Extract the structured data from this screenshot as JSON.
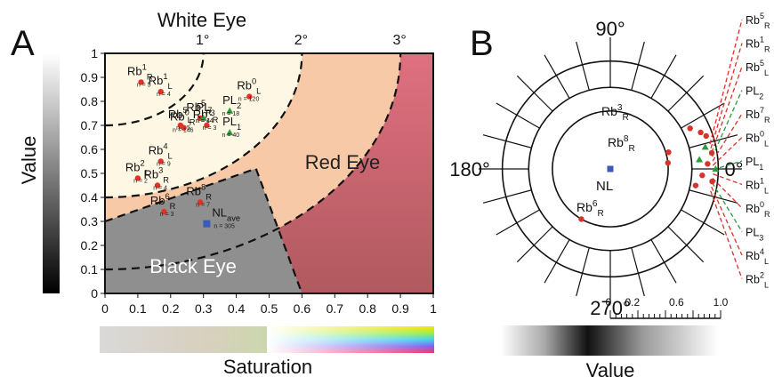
{
  "chart_data": [
    {
      "panel": "A",
      "type": "scatter",
      "title": "White Eye",
      "xlabel": "Saturation",
      "ylabel": "Value",
      "xlim": [
        0,
        1
      ],
      "ylim": [
        0,
        1
      ],
      "xticks": [
        "0",
        "0.1",
        "0.2",
        "0.3",
        "0.4",
        "0.5",
        "0.6",
        "0.7",
        "0.8",
        "0.9",
        "1"
      ],
      "yticks": [
        "0",
        "0.1",
        "0.2",
        "0.3",
        "0.4",
        "0.5",
        "0.6",
        "0.7",
        "0.8",
        "0.9",
        "1"
      ],
      "arc_labels": [
        "1°",
        "2°",
        "3°"
      ],
      "arc_radii": [
        0.3,
        0.6,
        0.9
      ],
      "regions": [
        "Red Eye",
        "Black Eye"
      ],
      "region_colors": {
        "white": "#fdf7e3",
        "orange": "#f8c9a6",
        "red": "#db6c7e",
        "black": "#8f8f8f"
      },
      "black_eye_boundary": [
        [
          0,
          0.3
        ],
        [
          0.46,
          0.52
        ],
        [
          0.6,
          0
        ]
      ],
      "points": [
        {
          "label": "Rb",
          "sup": "1",
          "sub": "R",
          "n": "n = 5",
          "x": 0.11,
          "y": 0.88,
          "marker": "circle"
        },
        {
          "label": "Rb",
          "sup": "1",
          "sub": "L",
          "n": "n = 4",
          "x": 0.17,
          "y": 0.84,
          "marker": "circle"
        },
        {
          "label": "PL",
          "sup": "",
          "sub": "2",
          "n": "n = 18",
          "x": 0.38,
          "y": 0.76,
          "marker": "triangle"
        },
        {
          "label": "Rb",
          "sup": "5",
          "sub": "R",
          "n": "n = 4",
          "x": 0.29,
          "y": 0.73,
          "marker": "circle"
        },
        {
          "label": "Rb",
          "sup": "5",
          "sub": "L",
          "n": "n = 5",
          "x": 0.23,
          "y": 0.7,
          "marker": "circle"
        },
        {
          "label": "Rb",
          "sup": "7",
          "sub": "R",
          "n": "n = 3",
          "x": 0.31,
          "y": 0.7,
          "marker": "circle"
        },
        {
          "label": "Rb",
          "sup": "0",
          "sub": "L",
          "n": "n = 120",
          "x": 0.44,
          "y": 0.82,
          "marker": "circle"
        },
        {
          "label": "Rb",
          "sup": "0",
          "sub": "R",
          "n": "n = 146",
          "x": 0.24,
          "y": 0.69,
          "marker": "circle"
        },
        {
          "label": "PL",
          "sup": "",
          "sub": "3",
          "n": "n = 14",
          "x": 0.3,
          "y": 0.73,
          "marker": "triangle"
        },
        {
          "label": "PL",
          "sup": "",
          "sub": "1",
          "n": "n = 40",
          "x": 0.38,
          "y": 0.67,
          "marker": "triangle"
        },
        {
          "label": "Rb",
          "sup": "2",
          "sub": "L",
          "n": "n = 2",
          "x": 0.1,
          "y": 0.48,
          "marker": "circle"
        },
        {
          "label": "Rb",
          "sup": "4",
          "sub": "L",
          "n": "n = 9",
          "x": 0.17,
          "y": 0.55,
          "marker": "circle"
        },
        {
          "label": "Rb",
          "sup": "3",
          "sub": "R",
          "n": "n = 4",
          "x": 0.16,
          "y": 0.45,
          "marker": "circle"
        },
        {
          "label": "Rb",
          "sup": "8",
          "sub": "R",
          "n": "n = 7",
          "x": 0.29,
          "y": 0.38,
          "marker": "circle"
        },
        {
          "label": "Rb",
          "sup": "6",
          "sub": "R",
          "n": "n = 3",
          "x": 0.18,
          "y": 0.34,
          "marker": "circle"
        },
        {
          "label": "NL",
          "sup": "",
          "sub": "ave",
          "n": "n = 305",
          "x": 0.31,
          "y": 0.29,
          "marker": "square"
        }
      ],
      "colors": {
        "circle": "#e63025",
        "triangle": "#2a9a3a",
        "square": "#3a5bb8"
      }
    },
    {
      "panel": "B",
      "type": "scatter",
      "subtype": "polar hue-value plot",
      "xlabel": "Value",
      "angle_labels": [
        "90°",
        "180°",
        "0°",
        "270°"
      ],
      "radial_scale": {
        "ticks": [
          "0",
          "0.2",
          "0.6",
          "1.0"
        ],
        "range": [
          0,
          1
        ]
      },
      "rings": [
        0.44,
        0.62,
        0.82
      ],
      "center_label": "NL",
      "inner_labels": [
        {
          "label": "Rb",
          "sup": "3",
          "sub": "R"
        },
        {
          "label": "Rb",
          "sup": "8",
          "sub": "R"
        },
        {
          "label": "Rb",
          "sup": "6",
          "sub": "R"
        }
      ],
      "legend": [
        {
          "label": "Rb",
          "sup": "5",
          "sub": "R",
          "line": "red"
        },
        {
          "label": "Rb",
          "sup": "1",
          "sub": "R",
          "line": "red"
        },
        {
          "label": "Rb",
          "sup": "5",
          "sub": "L",
          "line": "red"
        },
        {
          "label": "PL",
          "sup": "",
          "sub": "2",
          "line": "green"
        },
        {
          "label": "Rb",
          "sup": "7",
          "sub": "R",
          "line": "red"
        },
        {
          "label": "Rb",
          "sup": "0",
          "sub": "L",
          "line": "red"
        },
        {
          "label": "PL",
          "sup": "",
          "sub": "1",
          "line": "green"
        },
        {
          "label": "Rb",
          "sup": "1",
          "sub": "L",
          "line": "red"
        },
        {
          "label": "Rb",
          "sup": "0",
          "sub": "R",
          "line": "red"
        },
        {
          "label": "PL",
          "sup": "",
          "sub": "3",
          "line": "green"
        },
        {
          "label": "Rb",
          "sup": "4",
          "sub": "L",
          "line": "red"
        },
        {
          "label": "Rb",
          "sup": "2",
          "sub": "L",
          "line": "red"
        }
      ],
      "points": [
        {
          "angle": 27,
          "r": 0.68,
          "marker": "circle"
        },
        {
          "angle": 22,
          "r": 0.74,
          "marker": "circle"
        },
        {
          "angle": 19,
          "r": 0.77,
          "marker": "circle"
        },
        {
          "angle": 13,
          "r": 0.74,
          "marker": "triangle"
        },
        {
          "angle": 9,
          "r": 0.78,
          "marker": "circle"
        },
        {
          "angle": 6,
          "r": 0.68,
          "marker": "triangle"
        },
        {
          "angle": 3,
          "r": 0.74,
          "marker": "circle"
        },
        {
          "angle": 0,
          "r": 0.8,
          "marker": "triangle"
        },
        {
          "angle": -4,
          "r": 0.7,
          "marker": "circle"
        },
        {
          "angle": -7,
          "r": 0.78,
          "marker": "circle"
        },
        {
          "angle": -11,
          "r": 0.66,
          "marker": "circle"
        },
        {
          "angle": 16,
          "r": 0.46,
          "marker": "circle"
        },
        {
          "angle": 6,
          "r": 0.44,
          "marker": "circle"
        },
        {
          "angle": 240,
          "r": 0.44,
          "marker": "circle"
        },
        {
          "angle": 0,
          "r": 0.0,
          "marker": "square"
        }
      ],
      "colors": {
        "red": "#d8332b",
        "green": "#2a9a3a",
        "square": "#3a5bb8"
      }
    }
  ],
  "panel_letters": [
    "A",
    "B"
  ]
}
